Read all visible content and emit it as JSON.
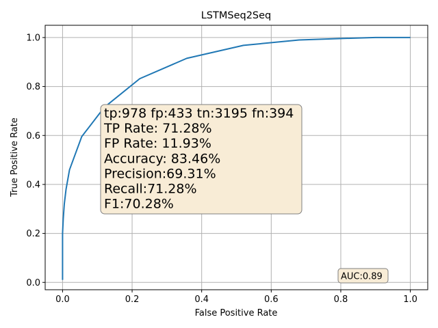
{
  "chart_data": {
    "type": "line",
    "title": "LSTMSeq2Seq",
    "xlabel": "False Positive Rate",
    "ylabel": "True Positive Rate",
    "xlim": [
      -0.05,
      1.05
    ],
    "ylim": [
      -0.03,
      1.05
    ],
    "xticks": [
      "0.0",
      "0.2",
      "0.4",
      "0.6",
      "0.8",
      "1.0"
    ],
    "yticks": [
      "0.0",
      "0.2",
      "0.4",
      "0.6",
      "0.8",
      "1.0"
    ],
    "grid": true,
    "series": [
      {
        "color": "#1f77b4",
        "x": [
          0.0,
          0.0,
          0.0,
          0.002,
          0.005,
          0.01,
          0.02,
          0.055,
          0.12,
          0.222,
          0.357,
          0.52,
          0.68,
          0.8,
          0.9,
          1.0
        ],
        "y": [
          0.01,
          0.1,
          0.2,
          0.26,
          0.32,
          0.38,
          0.46,
          0.595,
          0.715,
          0.832,
          0.915,
          0.968,
          0.99,
          0.996,
          1.0,
          1.0
        ]
      }
    ],
    "annotations": {
      "stats_box": {
        "color": "#f8ecd6",
        "lines": [
          "tp:978 fp:433 tn:3195 fn:394",
          "TP Rate: 71.28%",
          "FP Rate: 11.93%",
          "Accuracy: 83.46%",
          "Precision:69.31%",
          "Recall:71.28%",
          "F1:70.28%"
        ]
      },
      "auc_box": {
        "color": "#f8ecd6",
        "text": "AUC:0.89"
      }
    }
  }
}
